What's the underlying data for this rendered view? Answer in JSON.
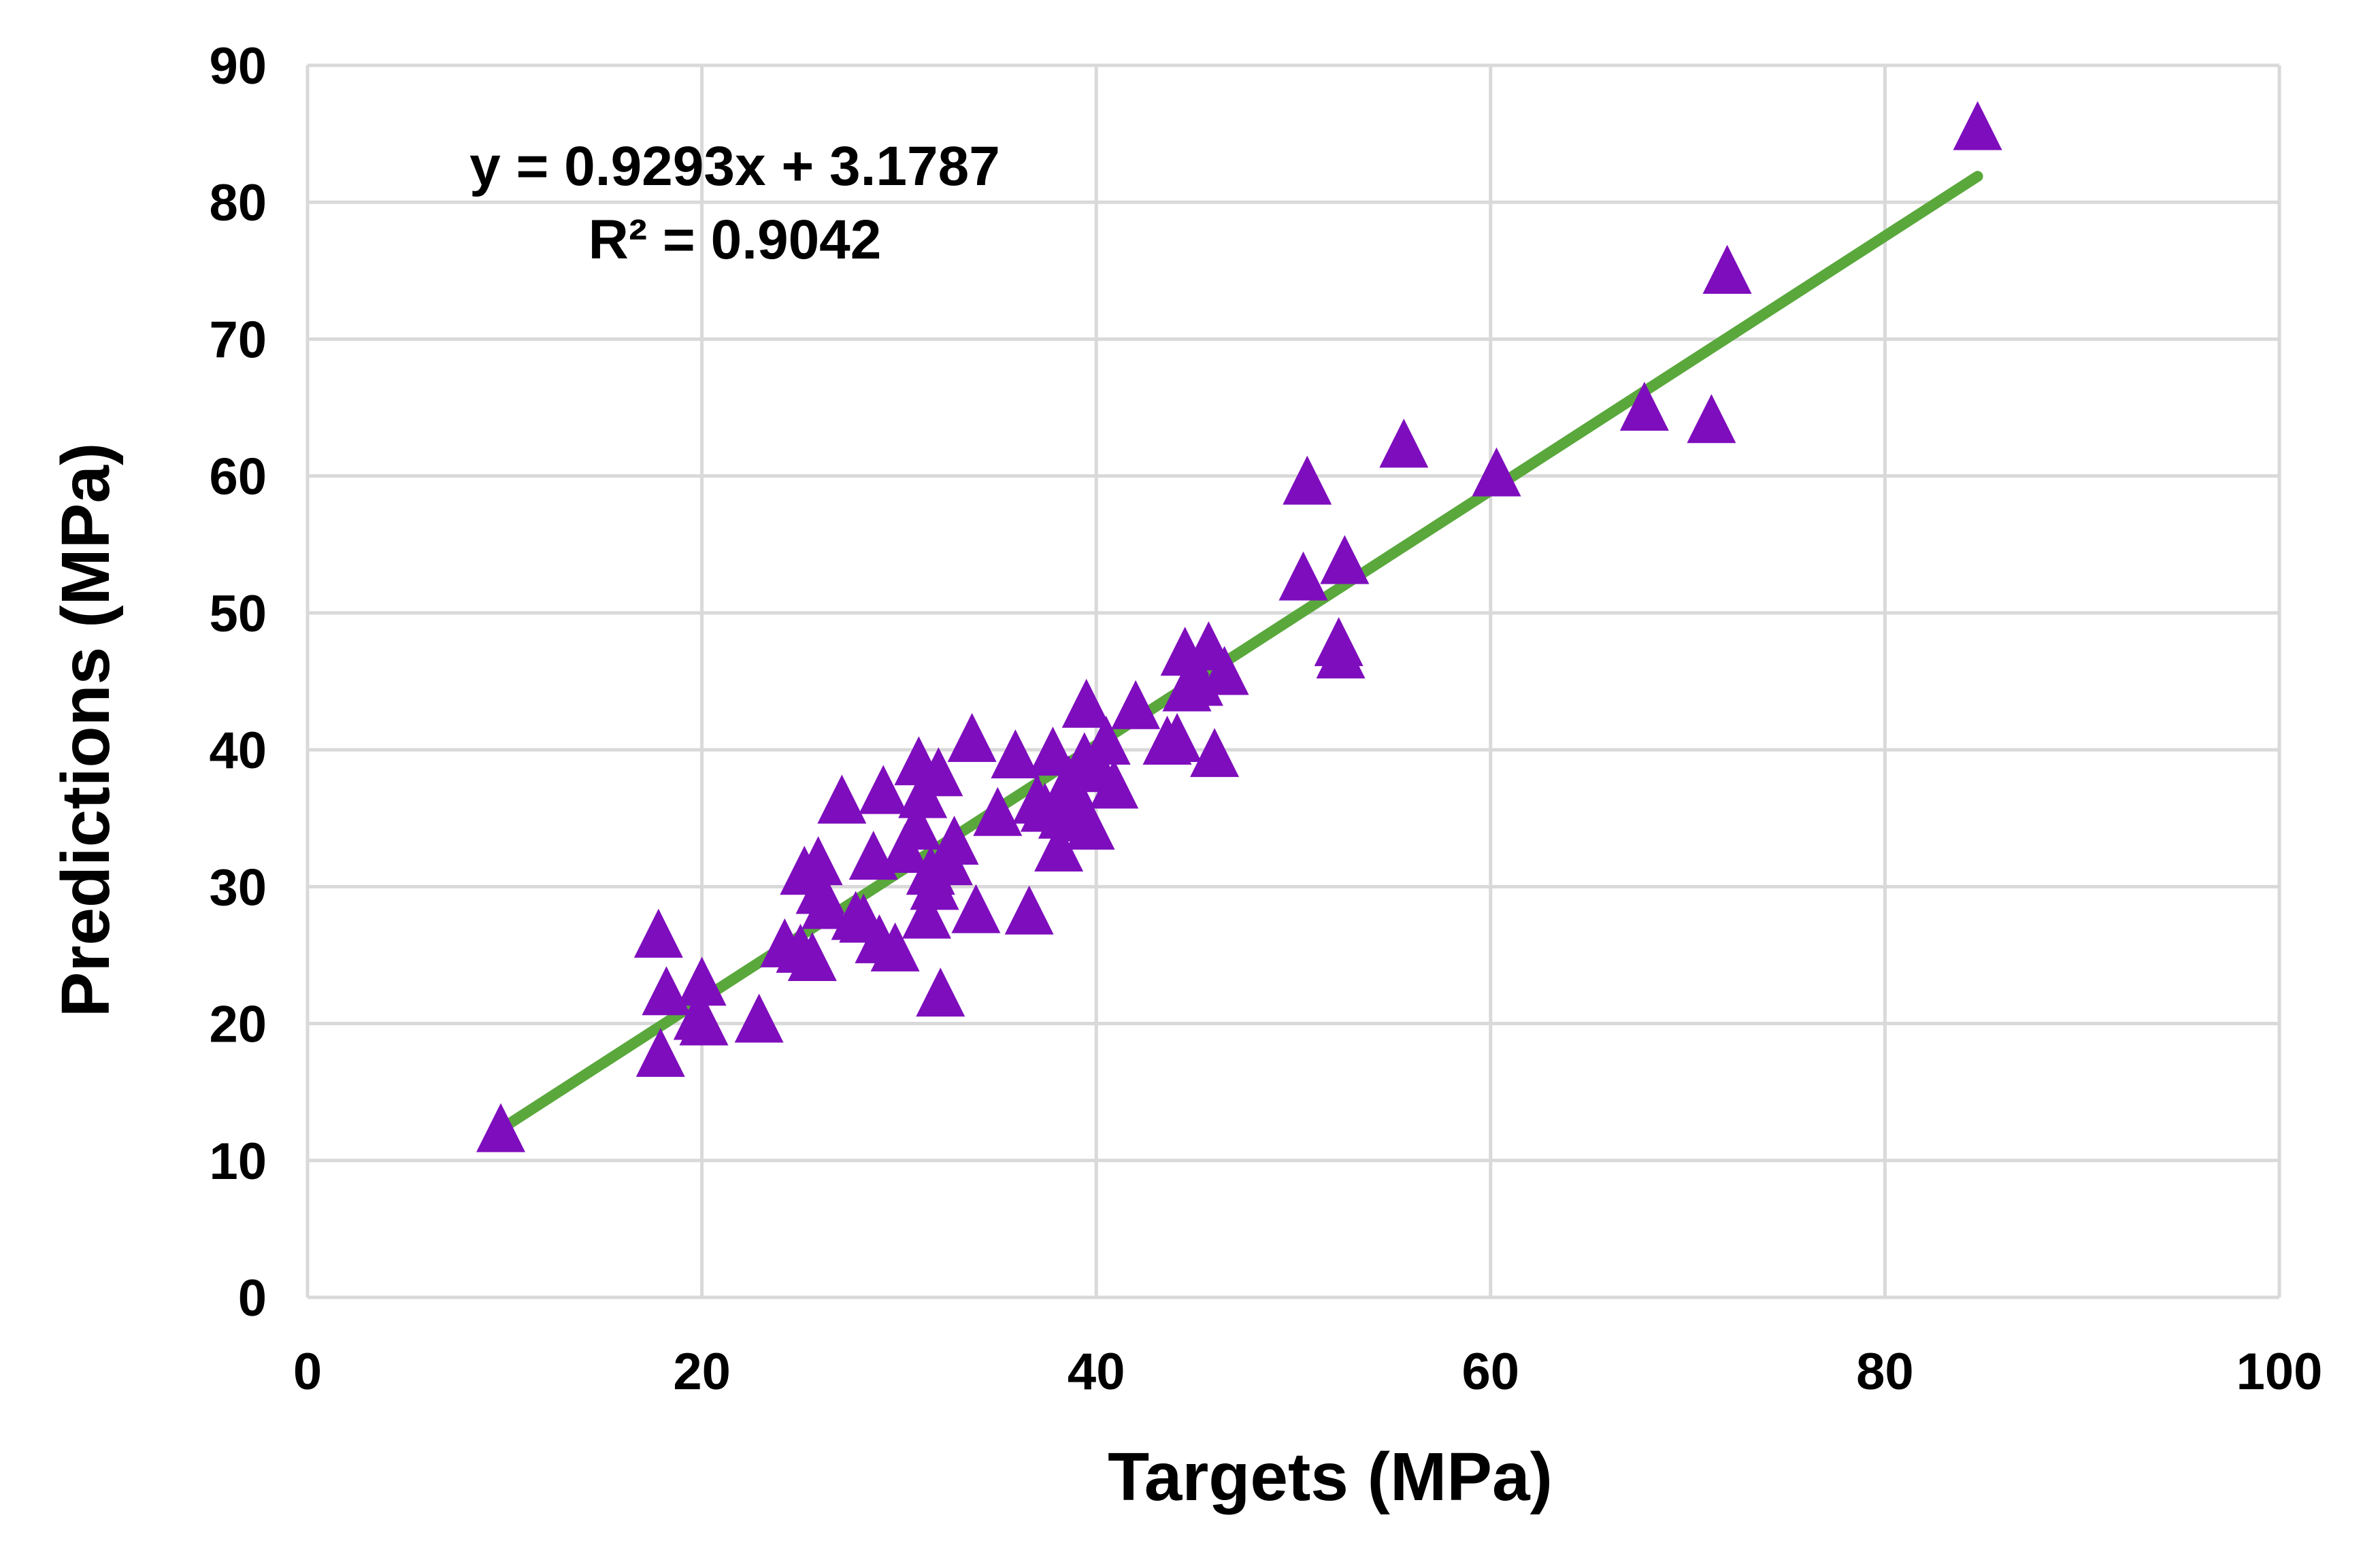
{
  "chart_data": {
    "type": "scatter",
    "title": "",
    "xlabel": "Targets (MPa)",
    "ylabel": "Predictions (MPa)",
    "xlim": [
      0,
      100
    ],
    "ylim": [
      0,
      90
    ],
    "xticks": [
      0,
      20,
      40,
      60,
      80,
      100
    ],
    "yticks": [
      0,
      10,
      20,
      30,
      40,
      50,
      60,
      70,
      80,
      90
    ],
    "x_tick_labels": [
      "0",
      "20",
      "40",
      "60",
      "80",
      "100"
    ],
    "y_tick_labels": [
      "0",
      "10",
      "20",
      "30",
      "40",
      "50",
      "60",
      "70",
      "80",
      "90"
    ],
    "grid": true,
    "legend": "none",
    "marker": "triangle",
    "colors": {
      "points": "#7e0dbd",
      "trendline": "#5aa83c",
      "grid": "#d9d9d9"
    },
    "trendline": {
      "slope": 0.9293,
      "intercept": 3.1787,
      "x_range": [
        9.8,
        84.7
      ],
      "equation_label": "y = 0.9293x + 3.1787",
      "r2_label": "R² = 0.9042"
    },
    "series": [
      {
        "name": "Predictions",
        "points": [
          [
            9.8,
            12.1
          ],
          [
            17.8,
            26.3
          ],
          [
            18.2,
            22.1
          ],
          [
            17.9,
            17.6
          ],
          [
            20.0,
            22.8
          ],
          [
            19.8,
            20.3
          ],
          [
            20.1,
            19.9
          ],
          [
            22.9,
            20.1
          ],
          [
            24.2,
            25.6
          ],
          [
            25.0,
            25.2
          ],
          [
            25.2,
            30.9
          ],
          [
            25.6,
            24.6
          ],
          [
            25.9,
            31.6
          ],
          [
            26.0,
            29.5
          ],
          [
            26.3,
            28.4
          ],
          [
            27.1,
            36.1
          ],
          [
            27.8,
            27.6
          ],
          [
            28.2,
            27.4
          ],
          [
            28.7,
            32.0
          ],
          [
            29.2,
            36.8
          ],
          [
            29.0,
            25.9
          ],
          [
            29.8,
            25.3
          ],
          [
            30.3,
            32.5
          ],
          [
            30.9,
            34.2
          ],
          [
            31.0,
            38.9
          ],
          [
            31.2,
            36.5
          ],
          [
            31.4,
            27.7
          ],
          [
            31.6,
            30.9
          ],
          [
            31.8,
            29.8
          ],
          [
            32.0,
            38.1
          ],
          [
            32.1,
            22.0
          ],
          [
            32.5,
            31.6
          ],
          [
            32.8,
            33.1
          ],
          [
            33.7,
            40.6
          ],
          [
            33.9,
            28.1
          ],
          [
            35.0,
            35.2
          ],
          [
            35.9,
            39.4
          ],
          [
            36.6,
            28.0
          ],
          [
            37.0,
            36.1
          ],
          [
            37.4,
            35.5
          ],
          [
            37.8,
            39.6
          ],
          [
            38.1,
            32.6
          ],
          [
            38.3,
            35.0
          ],
          [
            38.6,
            37.5
          ],
          [
            38.9,
            36.4
          ],
          [
            39.2,
            34.8
          ],
          [
            39.4,
            39.2
          ],
          [
            39.5,
            43.1
          ],
          [
            39.7,
            34.2
          ],
          [
            40.1,
            38.4
          ],
          [
            40.5,
            40.4
          ],
          [
            40.9,
            37.2
          ],
          [
            42.0,
            43.0
          ],
          [
            43.6,
            40.4
          ],
          [
            44.1,
            40.6
          ],
          [
            44.5,
            46.9
          ],
          [
            44.6,
            44.3
          ],
          [
            45.2,
            44.7
          ],
          [
            45.7,
            47.3
          ],
          [
            46.0,
            39.5
          ],
          [
            46.5,
            45.5
          ],
          [
            50.5,
            52.4
          ],
          [
            50.7,
            59.4
          ],
          [
            52.3,
            47.6
          ],
          [
            52.4,
            46.7
          ],
          [
            52.6,
            53.6
          ],
          [
            55.6,
            62.1
          ],
          [
            60.3,
            60.0
          ],
          [
            67.8,
            64.8
          ],
          [
            71.2,
            63.9
          ],
          [
            72.0,
            74.8
          ],
          [
            84.7,
            85.3
          ]
        ]
      }
    ]
  }
}
